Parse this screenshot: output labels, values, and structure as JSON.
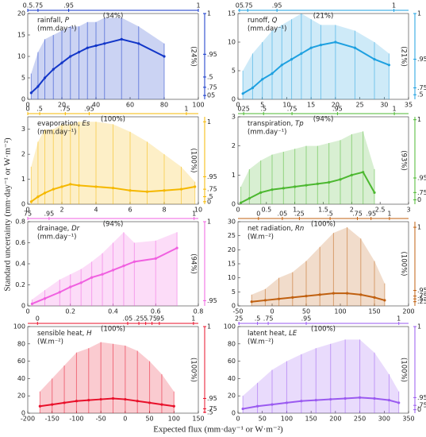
{
  "y_label": "Standard uncertainty (mm·day⁻¹ or W·m⁻²)",
  "x_label": "Expected flux (mm·day⁻¹ or W·m⁻²)",
  "chart_data": [
    {
      "type": "line",
      "title": "rainfall,",
      "symbol": "P",
      "unit": "(mm.day⁻¹)",
      "color": "#1236c8",
      "x": [
        2,
        6,
        10,
        15,
        20,
        25,
        30,
        35,
        40,
        45,
        55,
        65,
        80
      ],
      "values": [
        1.5,
        3,
        5,
        7,
        8.5,
        10,
        11,
        12,
        12.5,
        13,
        14,
        13,
        10
      ],
      "upper": [
        6,
        11,
        14,
        15,
        16,
        17,
        17,
        18,
        18,
        19,
        19,
        17,
        13
      ],
      "xlim": [
        0,
        100
      ],
      "xticks": [
        0,
        20,
        40,
        60,
        80,
        100
      ],
      "ylim": [
        0,
        20
      ],
      "yticks": [
        0,
        5,
        10,
        15,
        20
      ],
      "quantile_top": [
        {
          "value": 0,
          "label": "0.5"
        },
        {
          "value": 6,
          "label": ".75"
        },
        {
          "value": 24,
          "label": ".95"
        },
        {
          "value": 100,
          "label": "1"
        }
      ],
      "quantile_right": [
        {
          "value": 20,
          "label": "1"
        },
        {
          "value": 10.5,
          "label": ".95"
        },
        {
          "value": 5.2,
          "label": ".5"
        },
        {
          "value": 2.8,
          "label": ".75"
        },
        {
          "value": 0.9,
          "label": "05"
        }
      ],
      "pct_top": "(34%)",
      "pct_right": "(24%)"
    },
    {
      "type": "line",
      "title": "runoff,",
      "symbol": "Q",
      "unit": "(mm.day⁻¹)",
      "color": "#1ea0e0",
      "x": [
        1,
        3,
        5,
        7,
        9,
        11,
        13,
        15,
        17,
        20,
        24,
        28,
        31
      ],
      "values": [
        1,
        2,
        3.5,
        4.5,
        6,
        7,
        8,
        9,
        9.5,
        10,
        9,
        7,
        6
      ],
      "upper": [
        5,
        8,
        10,
        12,
        13,
        14,
        15,
        14,
        13,
        13,
        12,
        10,
        8
      ],
      "xlim": [
        0,
        35
      ],
      "xticks": [
        0,
        5,
        10,
        15,
        20,
        25,
        30,
        35
      ],
      "ylim": [
        0,
        15
      ],
      "yticks": [
        0,
        5,
        10,
        15
      ],
      "quantile_top": [
        {
          "value": 0.3,
          "label": "05"
        },
        {
          "value": 2,
          "label": ".75"
        },
        {
          "value": 8,
          "label": ".95"
        },
        {
          "value": 32,
          "label": "1"
        }
      ],
      "quantile_right": [
        {
          "value": 15,
          "label": "1"
        },
        {
          "value": 7,
          "label": ".95"
        },
        {
          "value": 2,
          "label": ".75"
        },
        {
          "value": 0.8,
          "label": ".5"
        }
      ],
      "pct_top": "(21%)",
      "pct_right": "(21%)"
    },
    {
      "type": "line",
      "title": "evaporation,",
      "symbol": "Es",
      "unit": "(mm.day⁻¹)",
      "color": "#f5b800",
      "x": [
        0.2,
        0.6,
        1,
        1.5,
        2,
        2.5,
        3,
        4,
        5,
        6,
        7,
        8,
        9,
        9.8
      ],
      "values": [
        0.1,
        0.3,
        0.45,
        0.6,
        0.7,
        0.8,
        0.75,
        0.7,
        0.65,
        0.55,
        0.5,
        0.55,
        0.6,
        0.7
      ],
      "upper": [
        1.5,
        2.5,
        3,
        3,
        3.2,
        3.2,
        3.3,
        3.3,
        3.2,
        2.9,
        2.5,
        2,
        1.5,
        0.9
      ],
      "xlim": [
        0,
        10
      ],
      "xticks": [
        0,
        2,
        4,
        6,
        8,
        10
      ],
      "ylim": [
        0,
        3.5
      ],
      "yticks": [
        0,
        1,
        2,
        3
      ],
      "quantile_top": [
        {
          "value": 0,
          "label": "0"
        },
        {
          "value": 0.7,
          "label": ".5"
        },
        {
          "value": 2.2,
          "label": ".75"
        },
        {
          "value": 3.6,
          "label": ".95"
        },
        {
          "value": 9.3,
          "label": "1"
        }
      ],
      "quantile_right": [
        {
          "value": 3.3,
          "label": "1"
        },
        {
          "value": 1.1,
          "label": ".95"
        },
        {
          "value": 0.6,
          "label": ".75"
        },
        {
          "value": 0.3,
          "label": ".5"
        },
        {
          "value": 0.1,
          "label": "0"
        }
      ],
      "pct_top": "(100%)",
      "pct_right": "(100%)"
    },
    {
      "type": "line",
      "title": "transpiration,",
      "symbol": "Tp",
      "unit": "(mm.day⁻¹)",
      "color": "#4cb830",
      "x": [
        0.05,
        0.2,
        0.4,
        0.6,
        0.8,
        1,
        1.2,
        1.4,
        1.6,
        1.8,
        2,
        2.2,
        2.4
      ],
      "values": [
        0.05,
        0.2,
        0.4,
        0.5,
        0.55,
        0.6,
        0.65,
        0.7,
        0.75,
        0.85,
        1,
        1.1,
        0.4
      ],
      "upper": [
        0.6,
        1.2,
        1.5,
        1.7,
        1.8,
        1.9,
        2,
        2,
        2.1,
        2.2,
        2.4,
        2.5,
        1.2
      ],
      "xlim": [
        0,
        3
      ],
      "xticks": [
        0,
        0.5,
        1,
        1.5,
        2,
        2.5,
        3
      ],
      "ylim": [
        0,
        3
      ],
      "yticks": [
        0,
        1,
        2,
        3
      ],
      "quantile_top": [
        {
          "value": 0.1,
          "label": "025"
        },
        {
          "value": 0.45,
          "label": ".5"
        },
        {
          "value": 0.95,
          "label": ".75"
        },
        {
          "value": 1.75,
          "label": ".95"
        },
        {
          "value": 2.75,
          "label": "1"
        }
      ],
      "quantile_right": [
        {
          "value": 2.9,
          "label": "1"
        },
        {
          "value": 0.9,
          "label": ".95"
        },
        {
          "value": 0.4,
          "label": ".75"
        },
        {
          "value": 0.15,
          "label": "0"
        }
      ],
      "pct_top": "(94%)",
      "pct_right": "(93%)"
    },
    {
      "type": "line",
      "title": "drainage,",
      "symbol": "Dr",
      "unit": "(mm.day⁻¹)",
      "color": "#f060e0",
      "x": [
        0.02,
        0.08,
        0.15,
        0.2,
        0.25,
        0.3,
        0.35,
        0.4,
        0.45,
        0.5,
        0.6,
        0.7
      ],
      "values": [
        0.02,
        0.07,
        0.13,
        0.18,
        0.22,
        0.27,
        0.3,
        0.34,
        0.38,
        0.42,
        0.45,
        0.55
      ],
      "upper": [
        0.06,
        0.15,
        0.25,
        0.3,
        0.35,
        0.42,
        0.5,
        0.6,
        0.7,
        0.6,
        0.62,
        0.7
      ],
      "xlim": [
        0,
        0.8
      ],
      "xticks": [
        0,
        0.2,
        0.4,
        0.6,
        0.8
      ],
      "ylim": [
        0,
        0.8
      ],
      "yticks": [
        0,
        0.2,
        0.4,
        0.6,
        0.8
      ],
      "quantile_top": [
        {
          "value": 0,
          "label": "75"
        },
        {
          "value": 0.1,
          "label": ".95"
        },
        {
          "value": 0.78,
          "label": "1"
        }
      ],
      "quantile_right": [
        {
          "value": 0.8,
          "label": "1"
        },
        {
          "value": 0.05,
          "label": ".95"
        }
      ],
      "pct_top": "(94%)",
      "pct_right": "(94%)"
    },
    {
      "type": "line",
      "title": "net radiation,",
      "symbol": "Rn",
      "unit": "(W.m⁻²)",
      "color": "#c06010",
      "x": [
        -30,
        -10,
        10,
        30,
        50,
        70,
        90,
        110,
        130,
        150,
        165
      ],
      "values": [
        1.5,
        2,
        2.5,
        3,
        3.5,
        4,
        4.5,
        4.5,
        4,
        3,
        2
      ],
      "upper": [
        4,
        6,
        10,
        12,
        16,
        21,
        26,
        28,
        24,
        16,
        8
      ],
      "xlim": [
        -50,
        200
      ],
      "xticks": [
        -50,
        0,
        50,
        100,
        150,
        200
      ],
      "ylim": [
        0,
        30
      ],
      "yticks": [
        0,
        5,
        10,
        15,
        20,
        25,
        30
      ],
      "quantile_top": [
        {
          "value": -20,
          "label": "0"
        },
        {
          "value": 15,
          "label": ".05"
        },
        {
          "value": 40,
          "label": ".25"
        },
        {
          "value": 85,
          "label": ".5"
        },
        {
          "value": 125,
          "label": ".75"
        },
        {
          "value": 145,
          "label": ".95"
        },
        {
          "value": 172,
          "label": "1"
        }
      ],
      "quantile_right": [
        {
          "value": 28,
          "label": "1"
        },
        {
          "value": 5.5,
          "label": ".95"
        },
        {
          "value": 3.5,
          "label": ".75"
        },
        {
          "value": 2.5,
          "label": ".5"
        },
        {
          "value": 1.5,
          "label": ".25"
        }
      ],
      "pct_top": "(100%)",
      "pct_right": "(100%)"
    },
    {
      "type": "line",
      "title": "sensible heat,",
      "symbol": "H",
      "unit": "(W.m⁻²)",
      "color": "#e8102a",
      "x": [
        -175,
        -150,
        -125,
        -100,
        -75,
        -50,
        -25,
        0,
        25,
        50,
        75,
        100
      ],
      "values": [
        8,
        10,
        12,
        14,
        15,
        16,
        17,
        16,
        14,
        12,
        10,
        8
      ],
      "upper": [
        25,
        40,
        55,
        70,
        75,
        82,
        80,
        78,
        72,
        60,
        45,
        25
      ],
      "xlim": [
        -200,
        150
      ],
      "xticks": [
        -200,
        -150,
        -100,
        -50,
        0,
        50,
        100,
        150
      ],
      "ylim": [
        0,
        100
      ],
      "yticks": [
        0,
        20,
        40,
        60,
        80,
        100
      ],
      "quantile_top": [
        {
          "value": -180,
          "label": "0"
        },
        {
          "value": 5,
          "label": ".05"
        },
        {
          "value": 28,
          "label": ".25"
        },
        {
          "value": 42,
          "label": "5"
        },
        {
          "value": 55,
          "label": ".75"
        },
        {
          "value": 70,
          "label": ".95"
        },
        {
          "value": 140,
          "label": "1"
        }
      ],
      "quantile_right": [
        {
          "value": 100,
          "label": "1"
        },
        {
          "value": 17,
          "label": ".95"
        },
        {
          "value": 5,
          "label": ".75"
        },
        {
          "value": 1,
          "label": ".5"
        }
      ],
      "pct_top": "(100%)",
      "pct_right": "(100%)"
    },
    {
      "type": "line",
      "title": "latent heat,",
      "symbol": "LE",
      "unit": "(W.m⁻²)",
      "color": "#9a5af0",
      "x": [
        10,
        40,
        70,
        100,
        130,
        160,
        190,
        220,
        250,
        280,
        310,
        330
      ],
      "values": [
        5,
        8,
        10,
        12,
        14,
        15,
        16,
        17,
        18,
        17,
        15,
        12
      ],
      "upper": [
        20,
        35,
        50,
        60,
        68,
        75,
        80,
        85,
        85,
        70,
        45,
        25
      ],
      "xlim": [
        0,
        350
      ],
      "xticks": [
        0,
        50,
        100,
        150,
        200,
        250,
        300,
        350
      ],
      "ylim": [
        0,
        100
      ],
      "yticks": [
        0,
        20,
        40,
        60,
        80,
        100
      ],
      "quantile_top": [
        {
          "value": 2,
          "label": "25"
        },
        {
          "value": 40,
          "label": ".5"
        },
        {
          "value": 62,
          "label": ".75"
        },
        {
          "value": 140,
          "label": ".95"
        },
        {
          "value": 330,
          "label": "1"
        }
      ],
      "quantile_right": [
        {
          "value": 100,
          "label": "1"
        },
        {
          "value": 18,
          "label": ".95"
        },
        {
          "value": 9,
          "label": ".75"
        },
        {
          "value": 4,
          "label": "0"
        }
      ],
      "pct_top": "(100%)",
      "pct_right": "(100%)"
    }
  ]
}
